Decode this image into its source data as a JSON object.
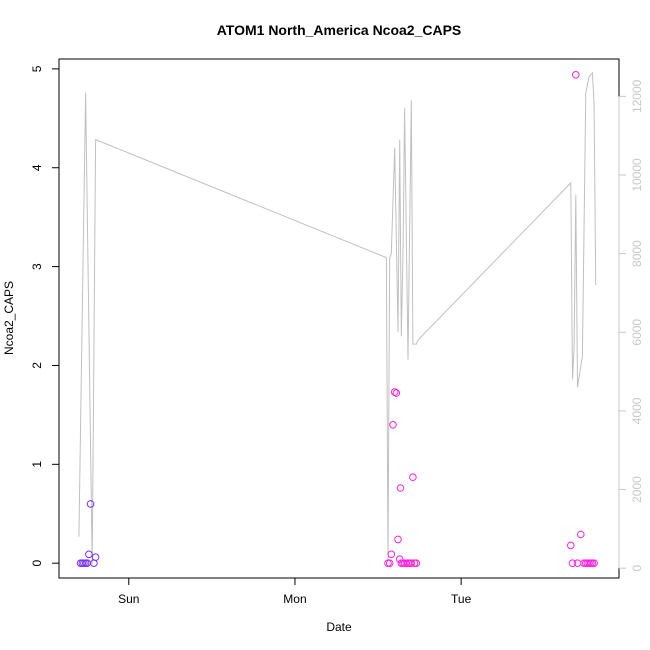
{
  "chart_data": {
    "type": "scatter",
    "title": "ATOM1 North_America Ncoa2_CAPS",
    "xlabel": "Date",
    "ylabel": "Ncoa2_CAPS",
    "x_ticks": [
      "Sun",
      "Mon",
      "Tue"
    ],
    "x_tick_positions_days": [
      1,
      2,
      3
    ],
    "xlim_days": [
      0.58,
      3.95
    ],
    "y_ticks": [
      "0",
      "1",
      "2",
      "3",
      "4",
      "5"
    ],
    "ylim": [
      -0.15,
      5.1
    ],
    "y2_ticks": [
      "0",
      "2000",
      "4000",
      "6000",
      "8000",
      "10000",
      "12000"
    ],
    "y2lim": [
      -250,
      12950
    ],
    "grid": false,
    "colors": {
      "frame": "#000000",
      "line": "#c0c0c0",
      "right_axis": "#c8c8c8",
      "points_early": "#7733ff",
      "points_late": "#ff22dd"
    },
    "series": [
      {
        "role": "points",
        "x_days": [
          0.71,
          0.72,
          0.73,
          0.74,
          0.75,
          0.76,
          0.77,
          0.79,
          0.8
        ],
        "values": [
          0,
          0,
          0,
          0,
          0,
          0.09,
          0.6,
          0,
          0.06
        ],
        "color": "#7733ff"
      },
      {
        "role": "points",
        "x_days": [
          2.56,
          2.57,
          2.58,
          2.59,
          2.6,
          2.61,
          2.62,
          2.63,
          2.635,
          2.64,
          2.65,
          2.66,
          2.67,
          2.68,
          2.69,
          2.7,
          2.71,
          2.72,
          2.73
        ],
        "values": [
          0,
          0,
          0.09,
          1.4,
          1.73,
          1.72,
          0.24,
          0.04,
          0.76,
          0,
          0,
          0,
          0,
          0,
          0,
          0,
          0.87,
          0,
          0
        ],
        "color": "#ff22dd"
      },
      {
        "role": "points",
        "x_days": [
          3.66,
          3.67,
          3.69,
          3.7,
          3.72,
          3.74,
          3.75,
          3.76,
          3.77,
          3.78,
          3.79,
          3.8
        ],
        "values": [
          0.18,
          0,
          4.94,
          0,
          0.29,
          0,
          0,
          0,
          0,
          0,
          0,
          0
        ],
        "color": "#ff22dd"
      },
      {
        "role": "line",
        "axis": "right",
        "x_days": [
          0.7,
          0.74,
          0.78,
          0.8,
          2.55,
          2.56,
          2.57,
          2.58,
          2.6,
          2.62,
          2.63,
          2.64,
          2.65,
          2.66,
          2.68,
          2.7,
          2.71,
          2.73,
          2.74,
          3.66,
          3.67,
          3.68,
          3.69,
          3.7,
          3.73,
          3.75,
          3.77,
          3.79,
          3.8,
          3.81
        ],
        "values": [
          800,
          12100,
          100,
          10900,
          7900,
          200,
          7900,
          8000,
          10700,
          6000,
          10900,
          5900,
          8000,
          11700,
          5300,
          11900,
          5700,
          5700,
          5800,
          9800,
          4800,
          5600,
          9500,
          4600,
          5400,
          12100,
          12500,
          12600,
          11800,
          7200
        ],
        "color": "#c0c0c0"
      }
    ]
  }
}
